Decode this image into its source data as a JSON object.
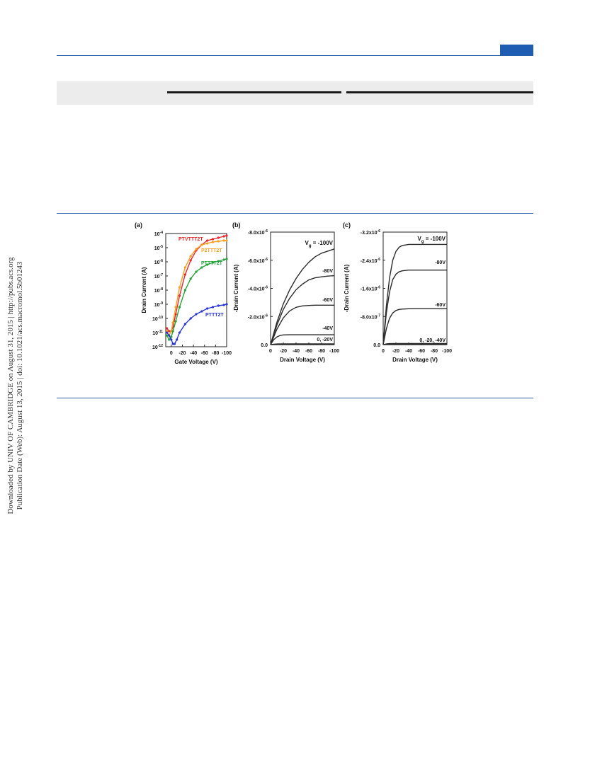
{
  "sidebar": {
    "line1": "Downloaded by UNIV OF CAMBRIDGE on August 31, 2015 | http://pubs.acs.org",
    "line2": "Publication Date (Web): August 13, 2015 | doi: 10.1021/acs.macromol.5b01243"
  },
  "colors": {
    "rule": "#2a5fa6",
    "tab": "#1f5db3",
    "band": "#ececec",
    "PTVTTT2T": "#e8262a",
    "P2TTT2T": "#f7a020",
    "PTTTT2T": "#27a33a",
    "PTTT2T": "#2a35d6"
  },
  "chart_data": [
    {
      "panel": "(a)",
      "type": "scatter",
      "xlabel": "Gate Voltage (V)",
      "ylabel": "Drain Current (A)",
      "log_y": true,
      "xlim": [
        10,
        -100
      ],
      "ylim": [
        -12,
        -4
      ],
      "x_ticks": [
        0,
        -20,
        -40,
        -60,
        -80,
        -100
      ],
      "x_tick_labels": [
        "0",
        "-20",
        "-40",
        "-60",
        "-80",
        "-100"
      ],
      "y_tick_exponents": [
        -4,
        -5,
        -6,
        -7,
        -8,
        -9,
        -10,
        -11,
        -12
      ],
      "y_tick_base": "10",
      "series": [
        {
          "name": "PTVTTT2T",
          "color": "#e8262a",
          "x": [
            8,
            4,
            0,
            -3,
            -8,
            -15,
            -25,
            -35,
            -45,
            -55,
            -65,
            -75,
            -85,
            -95,
            -100
          ],
          "y": [
            -10.7,
            -10.9,
            -10.9,
            -10.6,
            -9.7,
            -8.4,
            -6.9,
            -5.9,
            -5.2,
            -4.8,
            -4.5,
            -4.4,
            -4.3,
            -4.2,
            -4.15
          ]
        },
        {
          "name": "P2TTT2T",
          "color": "#f7a020",
          "x": [
            8,
            4,
            0,
            -3,
            -8,
            -15,
            -25,
            -35,
            -45,
            -55,
            -65,
            -75,
            -85,
            -95,
            -100
          ],
          "y": [
            -10.9,
            -11.2,
            -10.9,
            -10.3,
            -9.2,
            -7.8,
            -6.4,
            -5.6,
            -5.1,
            -4.8,
            -4.7,
            -4.6,
            -4.55,
            -4.5,
            -4.5
          ]
        },
        {
          "name": "PTTTT2T",
          "color": "#27a33a",
          "x": [
            8,
            4,
            0,
            -3,
            -8,
            -15,
            -25,
            -35,
            -45,
            -55,
            -65,
            -75,
            -85,
            -95,
            -100
          ],
          "y": [
            -11.2,
            -11.5,
            -11.3,
            -10.9,
            -10.2,
            -9.2,
            -8.0,
            -7.2,
            -6.7,
            -6.4,
            -6.2,
            -6.05,
            -5.95,
            -5.85,
            -5.8
          ]
        },
        {
          "name": "PTTT2T",
          "color": "#2a35d6",
          "x": [
            8,
            4,
            0,
            -3,
            -6,
            -10,
            -15,
            -25,
            -35,
            -45,
            -55,
            -65,
            -75,
            -85,
            -95,
            -100
          ],
          "y": [
            -11.0,
            -11.2,
            -11.5,
            -11.8,
            -11.8,
            -11.5,
            -11.0,
            -10.4,
            -10.0,
            -9.7,
            -9.5,
            -9.3,
            -9.2,
            -9.1,
            -9.05,
            -9.0
          ]
        }
      ]
    },
    {
      "panel": "(b)",
      "type": "line",
      "xlabel": "Drain Voltage (V)",
      "ylabel": "-Drain Current (A)",
      "xlim": [
        0,
        -100
      ],
      "ylim": [
        0,
        -8e-06
      ],
      "x_ticks": [
        0,
        -20,
        -40,
        -60,
        -80,
        -100
      ],
      "x_tick_labels": [
        "0",
        "-20",
        "-40",
        "-60",
        "-80",
        "-100"
      ],
      "y_ticks": [
        0,
        -2e-06,
        -4e-06,
        -6e-06,
        -8e-06
      ],
      "y_tick_mantissas": [
        "0.0",
        "-2.0x10",
        "-4.0x10",
        "-6.0x10",
        "-8.0x10"
      ],
      "y_tick_exponent": "-6",
      "annotations": [
        {
          "label_main": "V",
          "label_sub": "g",
          "label_rest": " = -100V"
        },
        {
          "text": "-80V"
        },
        {
          "text": "-60V"
        },
        {
          "text": "-40V"
        },
        {
          "text": "0, -20V"
        }
      ],
      "series": [
        {
          "name": "-100V",
          "saturation": -6.8e-06,
          "x": [
            0,
            -10,
            -20,
            -30,
            -40,
            -50,
            -60,
            -70,
            -80,
            -90,
            -100
          ],
          "y": [
            0,
            -1.6e-06,
            -2.9e-06,
            -3.9e-06,
            -4.7e-06,
            -5.35e-06,
            -5.85e-06,
            -6.25e-06,
            -6.5e-06,
            -6.65e-06,
            -6.8e-06
          ]
        },
        {
          "name": "-80V",
          "saturation": -4.9e-06,
          "x": [
            0,
            -10,
            -20,
            -30,
            -40,
            -50,
            -60,
            -70,
            -80,
            -90,
            -100
          ],
          "y": [
            0,
            -1.4e-06,
            -2.5e-06,
            -3.3e-06,
            -3.9e-06,
            -4.3e-06,
            -4.6e-06,
            -4.75e-06,
            -4.82e-06,
            -4.87e-06,
            -4.9e-06
          ]
        },
        {
          "name": "-60V",
          "saturation": -2.8e-06,
          "x": [
            0,
            -10,
            -20,
            -30,
            -40,
            -50,
            -60,
            -70,
            -80,
            -90,
            -100
          ],
          "y": [
            0,
            -1.1e-06,
            -1.9e-06,
            -2.4e-06,
            -2.65e-06,
            -2.75e-06,
            -2.78e-06,
            -2.8e-06,
            -2.8e-06,
            -2.8e-06,
            -2.8e-06
          ]
        },
        {
          "name": "-40V",
          "saturation": -7e-07,
          "x": [
            0,
            -5,
            -10,
            -15,
            -20,
            -30,
            -40,
            -60,
            -80,
            -100
          ],
          "y": [
            0,
            -3.5e-07,
            -5.5e-07,
            -6.5e-07,
            -6.9e-07,
            -7e-07,
            -7e-07,
            -7e-07,
            -7e-07,
            -7e-07
          ]
        },
        {
          "name": "-20V",
          "saturation": -5e-08,
          "x": [
            0,
            -5,
            -10,
            -20,
            -40,
            -60,
            -80,
            -100
          ],
          "y": [
            0,
            -3e-08,
            -4.5e-08,
            -5e-08,
            -5e-08,
            -5e-08,
            -5e-08,
            -5e-08
          ]
        },
        {
          "name": "0V",
          "saturation": 0,
          "x": [
            0,
            -100
          ],
          "y": [
            0,
            0
          ]
        }
      ]
    },
    {
      "panel": "(c)",
      "type": "line",
      "xlabel": "Drain Voltage (V)",
      "ylabel": "-Drain Current (A)",
      "xlim": [
        0,
        -100
      ],
      "ylim": [
        0,
        -3.2e-06
      ],
      "x_ticks": [
        0,
        -20,
        -40,
        -60,
        -80,
        -100
      ],
      "x_tick_labels": [
        "0",
        "-20",
        "-40",
        "-60",
        "-80",
        "-100"
      ],
      "y_ticks": [
        0,
        -8e-07,
        -1.6e-06,
        -2.4e-06,
        -3.2e-06
      ],
      "y_tick_mantissas": [
        "0.0",
        "-8.0x10",
        "-1.6x10",
        "-2.4x10",
        "-3.2x10"
      ],
      "y_tick_exponents": [
        "",
        "-7",
        "-6",
        "-6",
        "-6"
      ],
      "annotations": [
        {
          "label_main": "V",
          "label_sub": "g",
          "label_rest": " = -100V"
        },
        {
          "text": "-80V"
        },
        {
          "text": "-60V"
        },
        {
          "text": "0, -20, -40V"
        }
      ],
      "series": [
        {
          "name": "-100V",
          "x": [
            0,
            -5,
            -10,
            -15,
            -20,
            -25,
            -30,
            -40,
            -50,
            -60,
            -80,
            -100
          ],
          "y": [
            0,
            -1.1e-06,
            -1.9e-06,
            -2.4e-06,
            -2.65e-06,
            -2.77e-06,
            -2.82e-06,
            -2.85e-06,
            -2.85e-06,
            -2.85e-06,
            -2.85e-06,
            -2.85e-06
          ]
        },
        {
          "name": "-80V",
          "x": [
            0,
            -5,
            -10,
            -15,
            -20,
            -25,
            -30,
            -40,
            -50,
            -60,
            -80,
            -100
          ],
          "y": [
            0,
            -9e-07,
            -1.5e-06,
            -1.85e-06,
            -2e-06,
            -2.07e-06,
            -2.1e-06,
            -2.12e-06,
            -2.12e-06,
            -2.12e-06,
            -2.12e-06,
            -2.12e-06
          ]
        },
        {
          "name": "-60V",
          "x": [
            0,
            -5,
            -10,
            -15,
            -20,
            -25,
            -30,
            -40,
            -50,
            -60,
            -80,
            -100
          ],
          "y": [
            0,
            -4.5e-07,
            -7.5e-07,
            -9e-07,
            -9.7e-07,
            -1e-06,
            -1.01e-06,
            -1.02e-06,
            -1.02e-06,
            -1.02e-06,
            -1.02e-06,
            -1.02e-06
          ]
        },
        {
          "name": "-40V",
          "x": [
            0,
            -5,
            -10,
            -20,
            -40,
            -60,
            -80,
            -100
          ],
          "y": [
            0,
            -2e-08,
            -2.8e-08,
            -3e-08,
            -3e-08,
            -3e-08,
            -3e-08,
            -3e-08
          ]
        },
        {
          "name": "-20V",
          "x": [
            0,
            -5,
            -10,
            -20,
            -40,
            -60,
            -80,
            -100
          ],
          "y": [
            0,
            -1e-08,
            -1.3e-08,
            -1.5e-08,
            -1.5e-08,
            -1.5e-08,
            -1.5e-08,
            -1.5e-08
          ]
        },
        {
          "name": "0V",
          "x": [
            0,
            -100
          ],
          "y": [
            0,
            0
          ]
        }
      ]
    }
  ]
}
